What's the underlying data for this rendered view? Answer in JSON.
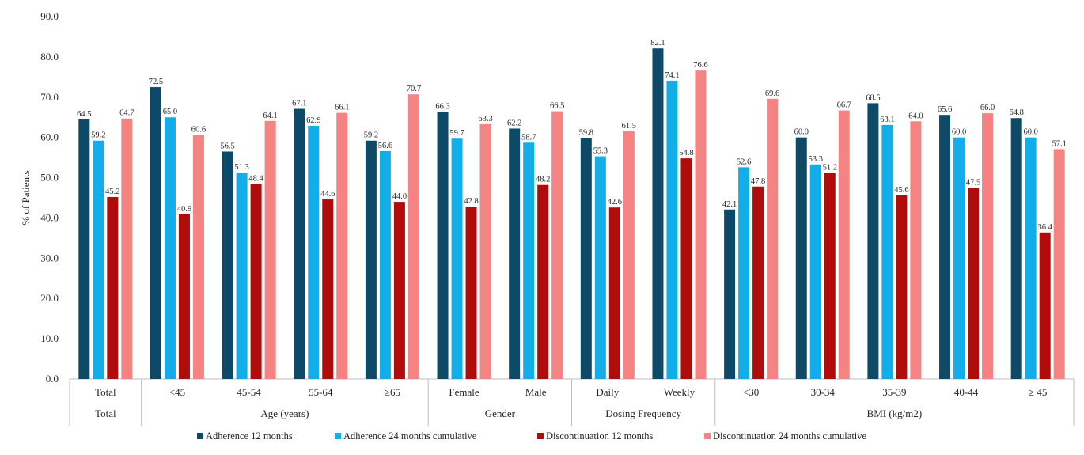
{
  "chart_data": {
    "type": "bar",
    "ylabel": "% of Patients",
    "ylim": [
      0,
      90
    ],
    "yticks": [
      "0.0",
      "10.0",
      "20.0",
      "30.0",
      "40.0",
      "50.0",
      "60.0",
      "70.0",
      "80.0",
      "90.0"
    ],
    "grid": false,
    "legend_position": "bottom",
    "categories": [
      "Total",
      "<45",
      "45-54",
      "55-64",
      "≥65",
      "Female",
      "Male",
      "Daily",
      "Weekly",
      "<30",
      "30-34",
      "35-39",
      "40-44",
      "≥ 45"
    ],
    "groups": [
      {
        "label": "Total",
        "categories": [
          "Total"
        ]
      },
      {
        "label": "Age (years)",
        "categories": [
          "<45",
          "45-54",
          "55-64",
          "≥65"
        ]
      },
      {
        "label": "Gender",
        "categories": [
          "Female",
          "Male"
        ]
      },
      {
        "label": "Dosing Frequency",
        "categories": [
          "Daily",
          "Weekly"
        ]
      },
      {
        "label": "BMI (kg/m2)",
        "categories": [
          "<30",
          "30-34",
          "35-39",
          "40-44",
          "≥ 45"
        ]
      }
    ],
    "series": [
      {
        "name": "Adherence 12 months",
        "color": "#0e4a67",
        "values": [
          64.5,
          72.5,
          56.5,
          67.1,
          59.2,
          66.3,
          62.2,
          59.8,
          82.1,
          42.1,
          60.0,
          68.5,
          65.6,
          64.8
        ]
      },
      {
        "name": "Adherence 24 months cumulative",
        "color": "#12aee9",
        "values": [
          59.2,
          65.0,
          51.3,
          62.9,
          56.6,
          59.7,
          58.7,
          55.3,
          74.1,
          52.6,
          53.3,
          63.1,
          60.0,
          60.0
        ]
      },
      {
        "name": "Discontinuation 12 months",
        "color": "#b00c0c",
        "values": [
          45.2,
          40.9,
          48.4,
          44.6,
          44.0,
          42.8,
          48.2,
          42.6,
          54.8,
          47.8,
          51.2,
          45.6,
          47.5,
          36.4
        ]
      },
      {
        "name": "Discontinuation 24 months cumulative",
        "color": "#f58383",
        "values": [
          64.7,
          60.6,
          64.1,
          66.1,
          70.7,
          63.3,
          66.5,
          61.5,
          76.6,
          69.6,
          66.7,
          64.0,
          66.0,
          57.1
        ]
      }
    ]
  }
}
